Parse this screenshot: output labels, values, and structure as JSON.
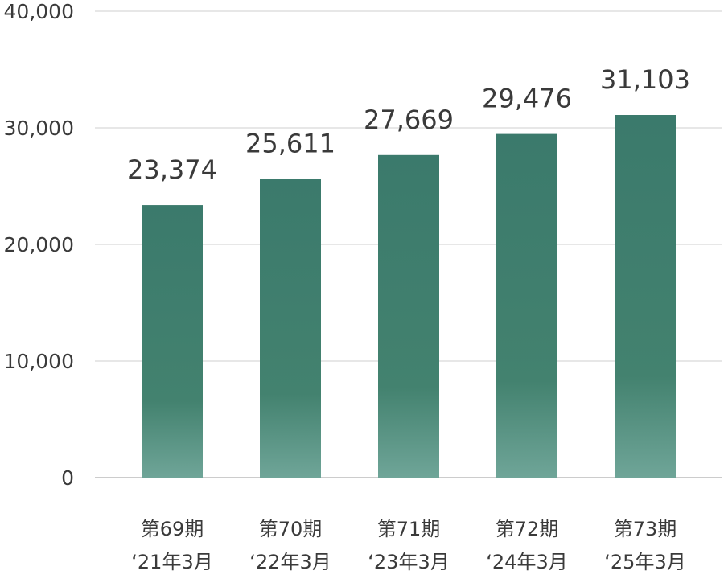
{
  "chart_data": {
    "type": "bar",
    "categories": [
      [
        "第69期",
        "‘21年3月"
      ],
      [
        "第70期",
        "‘22年3月"
      ],
      [
        "第71期",
        "‘23年3月"
      ],
      [
        "第72期",
        "‘24年3月"
      ],
      [
        "第73期",
        "‘25年3月"
      ]
    ],
    "values": [
      23374,
      25611,
      27669,
      29476,
      31103
    ],
    "value_labels": [
      "23,374",
      "25,611",
      "27,669",
      "29,476",
      "31,103"
    ],
    "title": "",
    "xlabel": "",
    "ylabel": "",
    "ylim": [
      0,
      40000
    ],
    "y_ticks": [
      0,
      10000,
      20000,
      30000,
      40000
    ],
    "y_tick_labels": [
      "0",
      "10,000",
      "20,000",
      "30,000",
      "40,000"
    ],
    "grid": true,
    "legend": "none",
    "colors": {
      "bar_top": "#3b7a6c",
      "bar_bottom": "#6fa598"
    }
  }
}
